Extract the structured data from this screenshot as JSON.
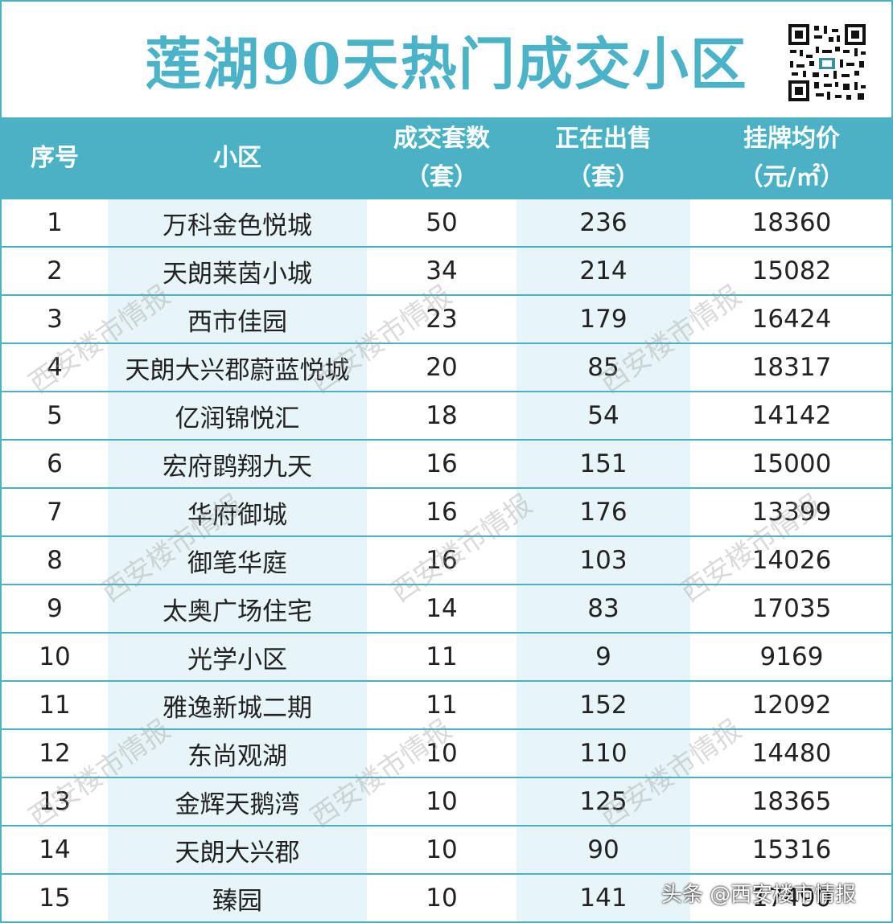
{
  "title": "莲湖90天热门成交小区",
  "header": {
    "col0": "序号",
    "col1": "小区",
    "col2_line1": "成交套数",
    "col2_line2": "（套）",
    "col3_line1": "正在出售",
    "col3_line2": "（套）",
    "col4_line1": "挂牌均价",
    "col4_line2": "（元/㎡）"
  },
  "rows": [
    {
      "rank": "1",
      "name": "万科金色悦城",
      "deals": "50",
      "on_sale": "236",
      "price": "18360"
    },
    {
      "rank": "2",
      "name": "天朗莱茵小城",
      "deals": "34",
      "on_sale": "214",
      "price": "15082"
    },
    {
      "rank": "3",
      "name": "西市佳园",
      "deals": "23",
      "on_sale": "179",
      "price": "16424"
    },
    {
      "rank": "4",
      "name": "天朗大兴郡蔚蓝悦城",
      "deals": "20",
      "on_sale": "85",
      "price": "18317"
    },
    {
      "rank": "5",
      "name": "亿润锦悦汇",
      "deals": "18",
      "on_sale": "54",
      "price": "14142"
    },
    {
      "rank": "6",
      "name": "宏府鹍翔九天",
      "deals": "16",
      "on_sale": "151",
      "price": "15000"
    },
    {
      "rank": "7",
      "name": "华府御城",
      "deals": "16",
      "on_sale": "176",
      "price": "13399"
    },
    {
      "rank": "8",
      "name": "御笔华庭",
      "deals": "16",
      "on_sale": "103",
      "price": "14026"
    },
    {
      "rank": "9",
      "name": "太奥广场住宅",
      "deals": "14",
      "on_sale": "83",
      "price": "17035"
    },
    {
      "rank": "10",
      "name": "光学小区",
      "deals": "11",
      "on_sale": "9",
      "price": "9169"
    },
    {
      "rank": "11",
      "name": "雅逸新城二期",
      "deals": "11",
      "on_sale": "152",
      "price": "12092"
    },
    {
      "rank": "12",
      "name": "东尚观湖",
      "deals": "10",
      "on_sale": "110",
      "price": "14480"
    },
    {
      "rank": "13",
      "name": "金辉天鹅湾",
      "deals": "10",
      "on_sale": "125",
      "price": "18365"
    },
    {
      "rank": "14",
      "name": "天朗大兴郡",
      "deals": "10",
      "on_sale": "90",
      "price": "15316"
    },
    {
      "rank": "15",
      "name": "臻园",
      "deals": "10",
      "on_sale": "141",
      "price": "17490"
    }
  ],
  "watermark_text": "西安楼市情报",
  "credit": "头条 @西安楼市情报",
  "colors": {
    "accent": "#4bb2c6",
    "shade": "#e8f5f8"
  }
}
